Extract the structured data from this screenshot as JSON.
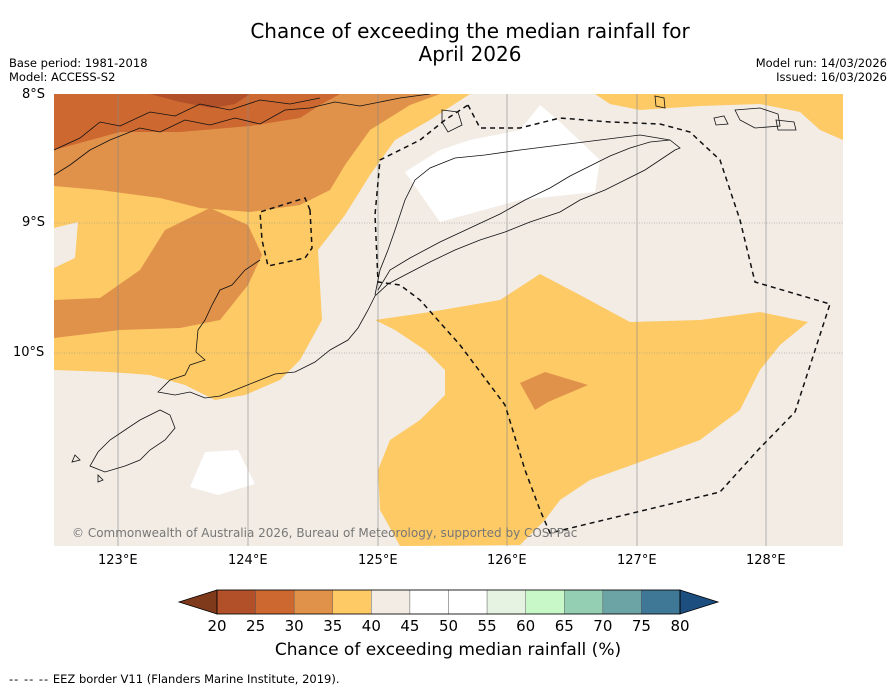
{
  "title_line1": "Chance of exceeding the median rainfall for",
  "title_line2": "April 2026",
  "meta": {
    "base_period": "Base period: 1981-2018",
    "model": "Model: ACCESS-S2",
    "model_run": "Model run: 14/03/2026",
    "issued": "Issued: 16/03/2026"
  },
  "axes": {
    "lat_labels": [
      "8°S",
      "9°S",
      "10°S"
    ],
    "lon_labels": [
      "123°E",
      "124°E",
      "125°E",
      "126°E",
      "127°E",
      "128°E"
    ],
    "lon_range": [
      122.5,
      128.6
    ],
    "lat_range": [
      -11.5,
      -8.0
    ]
  },
  "copyright": "© Commonwealth of Australia 2026, Bureau of Meteorology, supported by COSPPac",
  "colorbar": {
    "title": "Chance of exceeding median rainfall (%)",
    "ticks": [
      "20",
      "25",
      "30",
      "35",
      "40",
      "45",
      "50",
      "55",
      "60",
      "65",
      "70",
      "75",
      "80"
    ],
    "colors": [
      "#7f3a1c",
      "#b2502a",
      "#cd6830",
      "#e0914a",
      "#fdca65",
      "#f2ece5",
      "#ffffff",
      "#ffffff",
      "#e6f3e3",
      "#c8f8c8",
      "#95cfb3",
      "#6ca3a5",
      "#3f7897",
      "#1c4e80"
    ]
  },
  "legend": {
    "eez": "EEZ border V11 (Flanders Marine Institute, 2019)."
  }
}
